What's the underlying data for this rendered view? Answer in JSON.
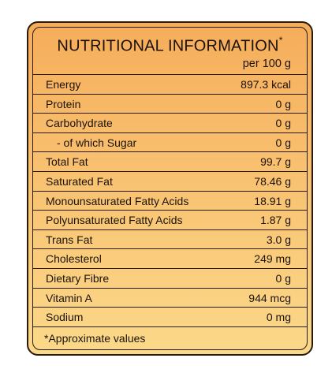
{
  "label": {
    "title": "NUTRITIONAL INFORMATION",
    "title_mark": "*",
    "subtitle": "per 100 g",
    "rows": [
      {
        "name": "Energy",
        "value": "897.3 kcal"
      },
      {
        "name": "Protein",
        "value": "0 g"
      },
      {
        "name": "Carbohydrate",
        "value": "0 g"
      },
      {
        "name": "- of which Sugar",
        "value": "0 g"
      },
      {
        "name": "Total Fat",
        "value": "99.7 g"
      },
      {
        "name": "Saturated Fat",
        "value": "78.46 g"
      },
      {
        "name": "Monounsaturated Fatty Acids",
        "value": "18.91 g"
      },
      {
        "name": "Polyunsaturated Fatty Acids",
        "value": "1.87 g"
      },
      {
        "name": "Trans Fat",
        "value": "3.0 g"
      },
      {
        "name": "Cholesterol",
        "value": "249 mg"
      },
      {
        "name": "Dietary Fibre",
        "value": "0 g"
      },
      {
        "name": "Vitamin A",
        "value": "944 mcg"
      },
      {
        "name": "Sodium",
        "value": "0 mg"
      }
    ],
    "footnote": "*Approximate values"
  },
  "colors": {
    "gradient_top": "#f6ad5a",
    "gradient_bottom": "#fbd98a",
    "border": "#2a1a0c"
  }
}
